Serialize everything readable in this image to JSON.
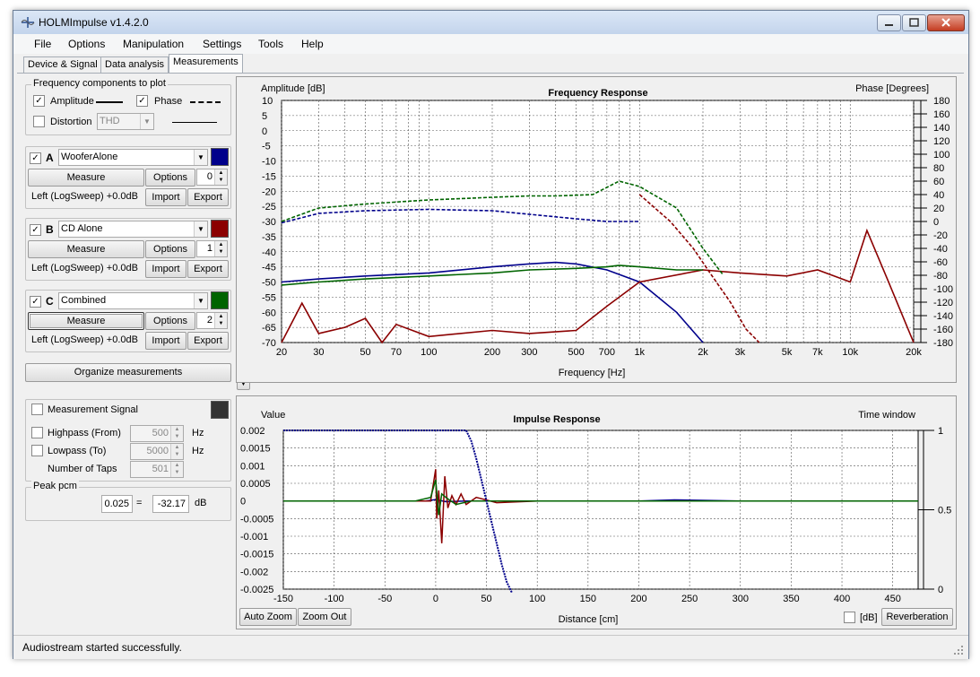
{
  "window": {
    "title": "HOLMImpulse  v1.4.2.0"
  },
  "menu": [
    "File",
    "Options",
    "Manipulation",
    "Settings",
    "Tools",
    "Help"
  ],
  "tabs": [
    "Device & Signal",
    "Data analysis",
    "Measurements"
  ],
  "freq_components": {
    "title": "Frequency components to plot",
    "amplitude": "Amplitude",
    "phase": "Phase",
    "distortion": "Distortion",
    "distortion_type": "THD"
  },
  "measurements": [
    {
      "letter": "A",
      "name": "WooferAlone",
      "measure": "Measure",
      "options": "Options",
      "offset": "0",
      "source": "Left (LogSweep) +0.0dB",
      "import": "Import",
      "export": "Export",
      "color": "#00008b"
    },
    {
      "letter": "B",
      "name": "CD Alone",
      "measure": "Measure",
      "options": "Options",
      "offset": "1",
      "source": "Left (LogSweep) +0.0dB",
      "import": "Import",
      "export": "Export",
      "color": "#8b0000"
    },
    {
      "letter": "C",
      "name": "Combined",
      "measure": "Measure",
      "options": "Options",
      "offset": "2",
      "source": "Left (LogSweep) +0.0dB",
      "import": "Import",
      "export": "Export",
      "color": "#006400"
    }
  ],
  "organize_button": "Organize measurements",
  "signal": {
    "title": "Measurement Signal",
    "highpass": "Highpass (From)",
    "highpass_value": "500",
    "lowpass": "Lowpass (To)",
    "lowpass_value": "5000",
    "taps_label": "Number of Taps",
    "taps_value": "501",
    "unit_hz": "Hz",
    "swatch_color": "#333333"
  },
  "peak": {
    "title": "Peak pcm",
    "value": "0.025",
    "equals": "=",
    "db_value": "-32.17",
    "unit": "dB"
  },
  "status": {
    "message": "Audiostream started successfully."
  },
  "impulse_controls": {
    "auto_zoom": "Auto Zoom",
    "zoom_out": "Zoom Out",
    "db_label": "[dB]",
    "reverberation": "Reverberation"
  },
  "chart_data": [
    {
      "type": "line",
      "title": "Frequency Response",
      "ylabel": "Amplitude [dB]",
      "y2label": "Phase [Degrees]",
      "xlabel": "Frequency [Hz]",
      "xscale": "log",
      "xlim": [
        20,
        20000
      ],
      "ylim": [
        -70,
        10
      ],
      "y2lim": [
        -180,
        180
      ],
      "x_ticks": [
        "20",
        "30",
        "50",
        "70",
        "100",
        "200",
        "300",
        "500",
        "700",
        "1k",
        "2k",
        "3k",
        "5k",
        "7k",
        "10k",
        "20k"
      ],
      "y_ticks": [
        10,
        5,
        0,
        -5,
        -10,
        -15,
        -20,
        -25,
        -30,
        -35,
        -40,
        -45,
        -50,
        -55,
        -60,
        -65,
        -70
      ],
      "y2_ticks": [
        180,
        160,
        140,
        120,
        100,
        80,
        60,
        40,
        20,
        0,
        -20,
        -40,
        -60,
        -80,
        -100,
        -120,
        -140,
        -160,
        -180
      ],
      "grid": true,
      "series": [
        {
          "name": "WooferAlone",
          "color": "#00008b",
          "amplitude": {
            "x": [
              20,
              30,
              50,
              100,
              200,
              300,
              400,
              500,
              700,
              1000,
              1500,
              2000
            ],
            "y": [
              -50,
              -49,
              -48,
              -47,
              -45,
              -44,
              -43.5,
              -44,
              -46,
              -50,
              -60,
              -70
            ]
          },
          "phase": {
            "x": [
              20,
              30,
              50,
              100,
              200,
              500,
              700,
              1000
            ],
            "y": [
              -2,
              12,
              16,
              18,
              16,
              4,
              0,
              0
            ]
          }
        },
        {
          "name": "CD Alone",
          "color": "#8b0000",
          "amplitude": {
            "x": [
              20,
              25,
              30,
              40,
              50,
              60,
              70,
              100,
              200,
              300,
              500,
              700,
              1000,
              2000,
              3000,
              5000,
              7000,
              10000,
              12000,
              15000,
              20000
            ],
            "y": [
              -70,
              -57,
              -67,
              -65,
              -62,
              -70,
              -64,
              -68,
              -66,
              -67,
              -66,
              -58,
              -50,
              -46,
              -47,
              -48,
              -46,
              -50,
              -33,
              -49,
              -70
            ]
          },
          "phase": {
            "x": [
              1000,
              1400,
              1800,
              2200,
              2700,
              3200,
              3700
            ],
            "y": [
              40,
              0,
              -40,
              -80,
              -120,
              -160,
              -180
            ]
          }
        },
        {
          "name": "Combined",
          "color": "#006400",
          "amplitude": {
            "x": [
              20,
              30,
              50,
              100,
              200,
              300,
              500,
              700,
              800,
              1000,
              1500,
              2000
            ],
            "y": [
              -51,
              -50,
              -49,
              -48,
              -47,
              -46,
              -45.5,
              -45,
              -44.5,
              -45,
              -46,
              -46
            ]
          },
          "phase": {
            "x": [
              20,
              30,
              50,
              100,
              200,
              300,
              400,
              600,
              800,
              1000,
              1500,
              2000,
              2500
            ],
            "y": [
              0,
              20,
              26,
              32,
              36,
              38,
              38,
              40,
              60,
              52,
              20,
              -40,
              -80
            ]
          }
        }
      ]
    },
    {
      "type": "line",
      "title": "Impulse Response",
      "ylabel": "Value",
      "y2label": "Time window",
      "xlabel": "Distance [cm]",
      "xlim": [
        -150,
        475
      ],
      "ylim": [
        -0.0025,
        0.002
      ],
      "y2lim": [
        0,
        1
      ],
      "x_ticks": [
        -150,
        -100,
        -50,
        0,
        50,
        100,
        150,
        200,
        250,
        300,
        350,
        400,
        450
      ],
      "y_ticks": [
        "0.002",
        "0.0015",
        "0.001",
        "0.0005",
        "0",
        "-0.0005",
        "-0.001",
        "-0.0015",
        "-0.002",
        "-0.0025"
      ],
      "y2_ticks": [
        "1",
        "0.5",
        "0"
      ],
      "grid": true,
      "series": [
        {
          "name": "WooferAlone",
          "color": "#00008b",
          "x": [
            -150,
            -10,
            0,
            10,
            30,
            60,
            100,
            200,
            235,
            300,
            400,
            475
          ],
          "y": [
            0,
            0,
            4e-05,
            -2e-05,
            0,
            0,
            0,
            0,
            3e-05,
            0,
            0,
            0
          ]
        },
        {
          "name": "CD Alone",
          "color": "#8b0000",
          "x": [
            -150,
            -5,
            0,
            1,
            3,
            6,
            9,
            12,
            16,
            20,
            25,
            30,
            40,
            60,
            100,
            200,
            300,
            400,
            475
          ],
          "y": [
            0,
            0,
            0.0009,
            -0.0005,
            0.0003,
            -0.0012,
            0.0007,
            -0.0002,
            0.00015,
            -0.0001,
            0.0002,
            -0.0001,
            0.0001,
            -5e-05,
            0,
            0,
            0,
            0,
            0
          ]
        },
        {
          "name": "Combined",
          "color": "#006400",
          "x": [
            -150,
            -20,
            -5,
            0,
            3,
            6,
            10,
            20,
            35,
            60,
            100,
            200,
            475
          ],
          "y": [
            0,
            0,
            0.0001,
            0.0006,
            -0.0004,
            0.0002,
            0.0001,
            -0.0001,
            0,
            0,
            0,
            0,
            0
          ]
        },
        {
          "name": "Time window",
          "color": "#00008b",
          "dashed": true,
          "x": [
            -150,
            30,
            35,
            40,
            45,
            50,
            55,
            60,
            65,
            70,
            75
          ],
          "y": [
            0.002,
            0.002,
            0.0017,
            0.0012,
            0.0006,
            0,
            -0.0006,
            -0.0012,
            -0.0018,
            -0.0023,
            -0.0026
          ]
        }
      ]
    }
  ]
}
